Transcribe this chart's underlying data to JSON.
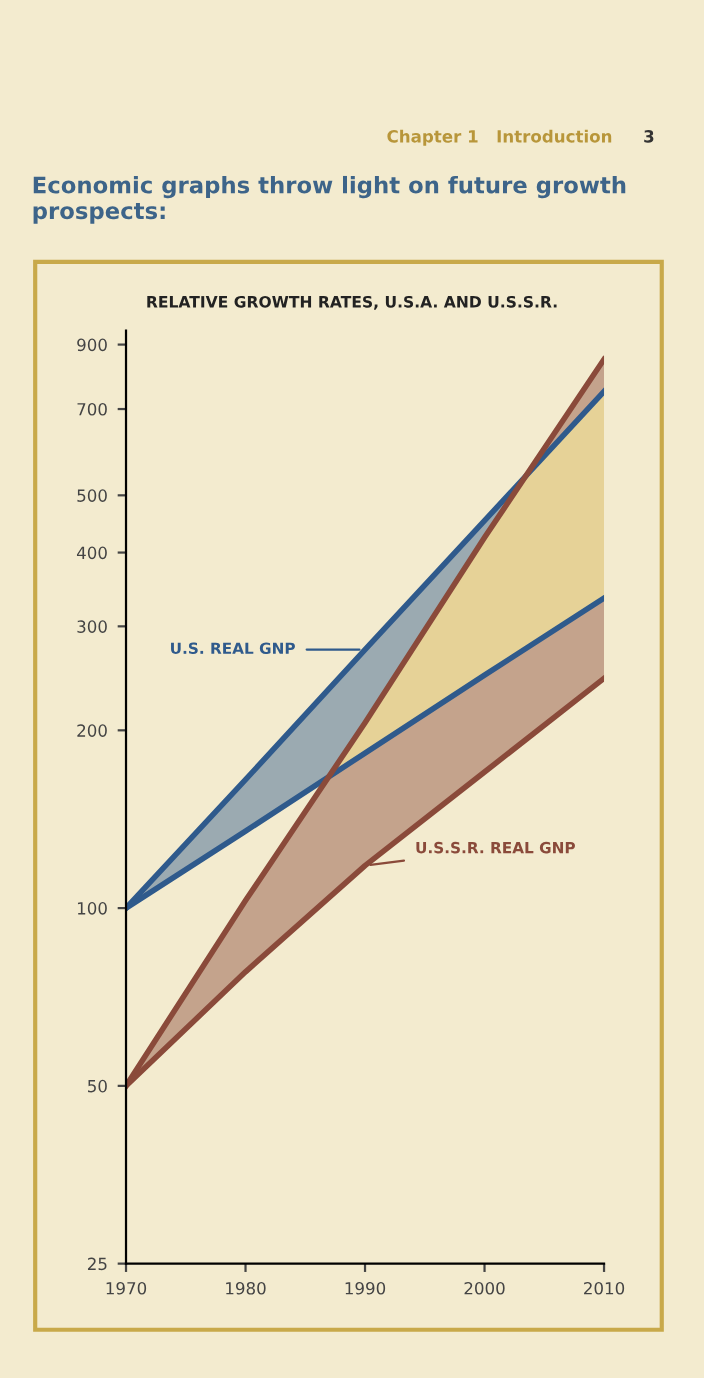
{
  "chart_data": {
    "type": "line",
    "title": "RELATIVE GROWTH RATES, U.S.A. AND U.S.S.R.",
    "annotations": [
      "Chapter 1   Introduction",
      "3",
      "Economic graphs throw light on future growth prospects:"
    ],
    "x": [
      1970,
      1980,
      1990,
      2000,
      2010
    ],
    "series": [
      {
        "name": "U.S. REAL GNP",
        "color": "#2f5a8c",
        "values": [
          100,
          165,
          274,
          453,
          750
        ]
      },
      {
        "color": "#2f5a8c",
        "values": [
          100,
          135,
          183,
          248,
          335
        ]
      },
      {
        "color": "#8a4a3a",
        "values": [
          50,
          103,
          206,
          424,
          850
        ]
      },
      {
        "name": "U.S.S.R. REAL GNP",
        "color": "#8a4a3a",
        "values": [
          50,
          78,
          118,
          170,
          245
        ]
      }
    ],
    "log": "y",
    "xlim": [
      1970,
      2010
    ],
    "xticks": [
      1970,
      1980,
      1990,
      2000,
      2010
    ],
    "ylim": [
      25,
      950
    ],
    "yticks": [
      25,
      50,
      100,
      200,
      300,
      400,
      500,
      700,
      900
    ],
    "grid": false,
    "marker": "none",
    "line_style": "solid"
  }
}
